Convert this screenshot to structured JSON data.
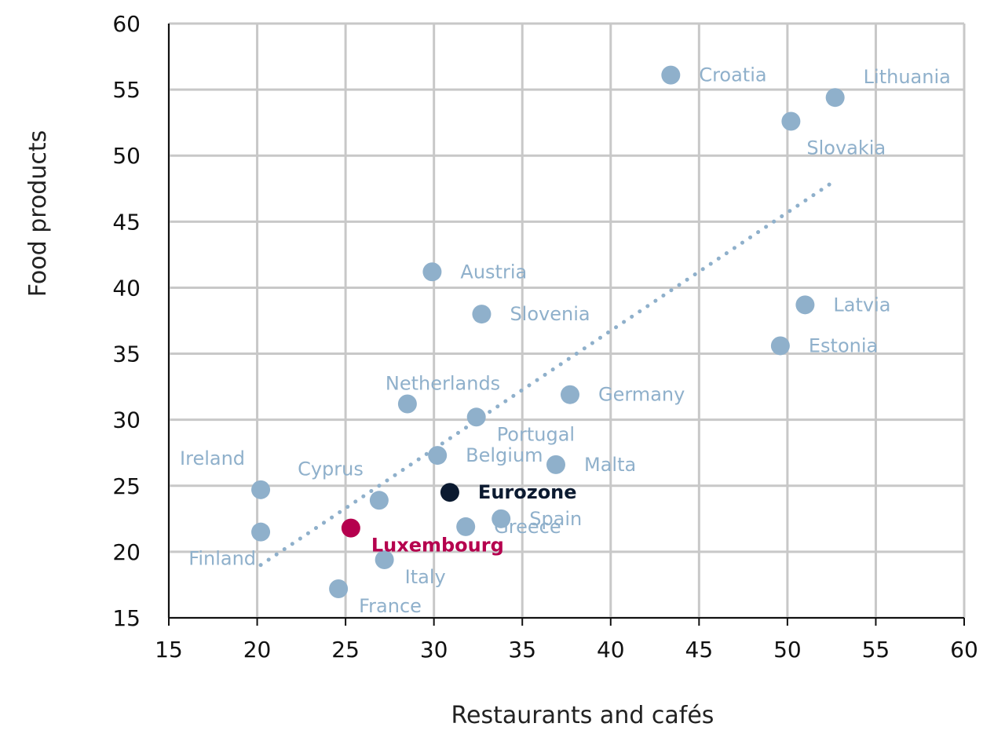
{
  "chart_data": {
    "type": "scatter",
    "xlabel": "Restaurants and cafés",
    "ylabel": "Food products",
    "xlim": [
      15,
      60
    ],
    "ylim": [
      15,
      60
    ],
    "xticks": [
      15,
      20,
      25,
      30,
      35,
      40,
      45,
      50,
      55,
      60
    ],
    "yticks": [
      15,
      20,
      25,
      30,
      35,
      40,
      45,
      50,
      55,
      60
    ],
    "grid": true,
    "colors": {
      "default": "#8fb0cb",
      "eurozone": "#0b1a30",
      "luxembourg": "#b5004e",
      "trend": "#8fb0cb",
      "grid": "#c8c8c8"
    },
    "trendline": {
      "x": [
        20.2,
        52.8
      ],
      "y": [
        19.0,
        48.2
      ]
    },
    "points": [
      {
        "label": "Croatia",
        "x": 43.4,
        "y": 56.1,
        "color": "default",
        "anchor": "right"
      },
      {
        "label": "Lithuania",
        "x": 52.7,
        "y": 54.4,
        "color": "default",
        "anchor": "above"
      },
      {
        "label": "Slovakia",
        "x": 50.2,
        "y": 52.6,
        "color": "default",
        "anchor": "below"
      },
      {
        "label": "Austria",
        "x": 29.9,
        "y": 41.2,
        "color": "default",
        "anchor": "right"
      },
      {
        "label": "Slovenia",
        "x": 32.7,
        "y": 38.0,
        "color": "default",
        "anchor": "right"
      },
      {
        "label": "Latvia",
        "x": 51.0,
        "y": 38.7,
        "color": "default",
        "anchor": "right"
      },
      {
        "label": "Estonia",
        "x": 49.6,
        "y": 35.6,
        "color": "default",
        "anchor": "right"
      },
      {
        "label": "Netherlands",
        "x": 28.5,
        "y": 31.2,
        "color": "default",
        "anchor": "above-right"
      },
      {
        "label": "Germany",
        "x": 37.7,
        "y": 31.9,
        "color": "default",
        "anchor": "right"
      },
      {
        "label": "Portugal",
        "x": 32.4,
        "y": 30.2,
        "color": "default",
        "anchor": "below-right"
      },
      {
        "label": "Ireland",
        "x": 20.2,
        "y": 24.7,
        "color": "default",
        "anchor": "above-left"
      },
      {
        "label": "Cyprus",
        "x": 26.9,
        "y": 23.9,
        "color": "default",
        "anchor": "above-left"
      },
      {
        "label": "Belgium",
        "x": 30.2,
        "y": 27.3,
        "color": "default",
        "anchor": "right"
      },
      {
        "label": "Malta",
        "x": 36.9,
        "y": 26.6,
        "color": "default",
        "anchor": "right"
      },
      {
        "label": "Eurozone",
        "x": 30.9,
        "y": 24.5,
        "color": "eurozone",
        "anchor": "right",
        "bold": true
      },
      {
        "label": "Spain",
        "x": 33.8,
        "y": 22.5,
        "color": "default",
        "anchor": "right"
      },
      {
        "label": "Greece",
        "x": 31.8,
        "y": 21.9,
        "color": "default",
        "anchor": "right"
      },
      {
        "label": "Luxembourg",
        "x": 25.3,
        "y": 21.8,
        "color": "luxembourg",
        "anchor": "below-right",
        "bold": true
      },
      {
        "label": "Finland",
        "x": 20.2,
        "y": 21.5,
        "color": "default",
        "anchor": "below-left"
      },
      {
        "label": "Italy",
        "x": 27.2,
        "y": 19.4,
        "color": "default",
        "anchor": "below-right"
      },
      {
        "label": "France",
        "x": 24.6,
        "y": 17.2,
        "color": "default",
        "anchor": "below-right"
      }
    ]
  }
}
